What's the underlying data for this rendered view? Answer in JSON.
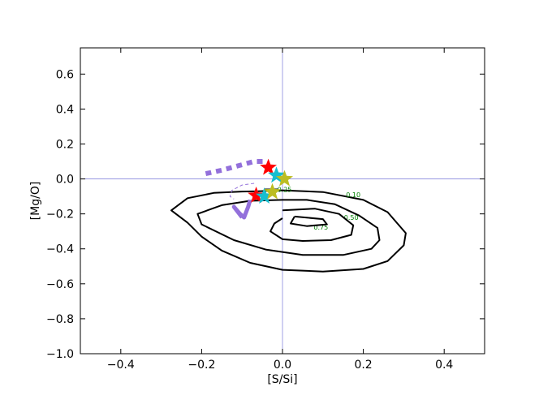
{
  "chart_data": {
    "type": "scatter",
    "title": "",
    "xlabel": "[S/Si]",
    "ylabel": "[Mg/O]",
    "xlim": [
      -0.5,
      0.5
    ],
    "ylim": [
      -1.0,
      0.75
    ],
    "xticks": [
      -0.4,
      -0.2,
      0.0,
      0.2,
      0.4
    ],
    "xtick_labels": [
      "−0.4",
      "−0.2",
      "0.0",
      "0.2",
      "0.4"
    ],
    "yticks": [
      -1.0,
      -0.8,
      -0.6,
      -0.4,
      -0.2,
      0.0,
      0.2,
      0.4,
      0.6
    ],
    "ytick_labels": [
      "−1.0",
      "−0.8",
      "−0.6",
      "−0.4",
      "−0.2",
      "0.0",
      "0.2",
      "0.4",
      "0.6"
    ],
    "grid": false,
    "reference_lines": {
      "x": 0.0,
      "y": 0.0,
      "color": "#8888dd"
    },
    "contours": [
      {
        "level_label": "0.10",
        "label_at": [
          0.175,
          -0.105
        ],
        "points": [
          [
            -0.06,
            -0.07
          ],
          [
            0.0,
            -0.065
          ],
          [
            0.1,
            -0.075
          ],
          [
            0.2,
            -0.12
          ],
          [
            0.26,
            -0.19
          ],
          [
            0.305,
            -0.31
          ],
          [
            0.3,
            -0.38
          ],
          [
            0.26,
            -0.47
          ],
          [
            0.2,
            -0.515
          ],
          [
            0.1,
            -0.53
          ],
          [
            0.0,
            -0.52
          ],
          [
            -0.08,
            -0.48
          ],
          [
            -0.15,
            -0.41
          ],
          [
            -0.2,
            -0.33
          ],
          [
            -0.235,
            -0.25
          ],
          [
            -0.275,
            -0.18
          ],
          [
            -0.235,
            -0.11
          ],
          [
            -0.17,
            -0.08
          ],
          [
            -0.1,
            -0.072
          ],
          [
            -0.06,
            -0.07
          ]
        ]
      },
      {
        "level_label": "0.50",
        "label_at": [
          0.17,
          -0.235
        ],
        "points": [
          [
            0.0,
            -0.12
          ],
          [
            0.06,
            -0.12
          ],
          [
            0.13,
            -0.145
          ],
          [
            0.19,
            -0.21
          ],
          [
            0.235,
            -0.28
          ],
          [
            0.24,
            -0.35
          ],
          [
            0.22,
            -0.4
          ],
          [
            0.15,
            -0.435
          ],
          [
            0.05,
            -0.435
          ],
          [
            -0.04,
            -0.405
          ],
          [
            -0.12,
            -0.35
          ],
          [
            -0.2,
            -0.26
          ],
          [
            -0.21,
            -0.2
          ],
          [
            -0.15,
            -0.15
          ],
          [
            -0.08,
            -0.125
          ],
          [
            0.0,
            -0.12
          ]
        ]
      },
      {
        "level_label": "0.75",
        "label_at": [
          0.095,
          -0.29
        ],
        "points": [
          [
            0.0,
            -0.18
          ],
          [
            0.08,
            -0.17
          ],
          [
            0.14,
            -0.2
          ],
          [
            0.175,
            -0.265
          ],
          [
            0.17,
            -0.32
          ],
          [
            0.12,
            -0.35
          ],
          [
            0.05,
            -0.355
          ],
          [
            0.0,
            -0.345
          ],
          [
            -0.03,
            -0.3
          ],
          [
            -0.02,
            -0.255
          ],
          [
            0.0,
            -0.225
          ]
        ]
      },
      {
        "level_label": "",
        "points": [
          [
            0.03,
            -0.215
          ],
          [
            0.1,
            -0.23
          ],
          [
            0.11,
            -0.26
          ],
          [
            0.06,
            -0.27
          ],
          [
            0.02,
            -0.255
          ],
          [
            0.03,
            -0.215
          ]
        ]
      },
      {
        "level_label": "0.25",
        "label_at": [
          0.005,
          -0.075
        ],
        "points": [
          [
            -0.045,
            -0.06
          ],
          [
            -0.01,
            -0.06
          ]
        ]
      }
    ],
    "tracks": [
      {
        "color": "#9370DB",
        "style": "dotted",
        "points": [
          [
            -0.19,
            0.03
          ],
          [
            -0.15,
            0.05
          ],
          [
            -0.11,
            0.075
          ],
          [
            -0.07,
            0.1
          ],
          [
            -0.04,
            0.1
          ]
        ]
      },
      {
        "color": "#9370DB",
        "style": "solid",
        "points": [
          [
            -0.1,
            -0.22
          ],
          [
            -0.12,
            -0.16
          ],
          [
            -0.105,
            -0.2
          ],
          [
            -0.095,
            -0.22
          ],
          [
            -0.085,
            -0.16
          ],
          [
            -0.08,
            -0.12
          ]
        ]
      },
      {
        "color": "#9370DB",
        "style": "dashed-thin",
        "points": [
          [
            -0.07,
            -0.025
          ],
          [
            -0.1,
            -0.035
          ],
          [
            -0.125,
            -0.065
          ],
          [
            -0.13,
            -0.1
          ],
          [
            -0.12,
            -0.115
          ]
        ]
      }
    ],
    "stars": [
      {
        "x": -0.035,
        "y": 0.065,
        "color": "#ff0000"
      },
      {
        "x": -0.015,
        "y": 0.02,
        "color": "#17becf"
      },
      {
        "x": 0.005,
        "y": 0.0,
        "color": "#bcbd22"
      },
      {
        "x": -0.065,
        "y": -0.095,
        "color": "#ff0000"
      },
      {
        "x": -0.045,
        "y": -0.1,
        "color": "#17becf"
      },
      {
        "x": -0.025,
        "y": -0.075,
        "color": "#bcbd22"
      }
    ]
  }
}
